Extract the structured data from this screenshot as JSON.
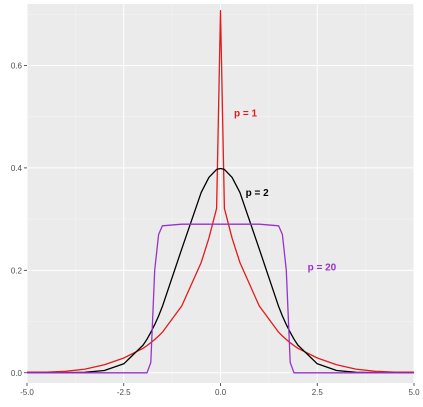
{
  "chart_data": {
    "type": "line",
    "title": "",
    "xlabel": "",
    "ylabel": "",
    "xlim": [
      -5,
      5
    ],
    "ylim": [
      -0.02,
      0.72
    ],
    "x_ticks": [
      -5.0,
      -2.5,
      0.0,
      2.5,
      5.0
    ],
    "x_tick_labels": [
      "-5.0",
      "-2.5",
      "0.0",
      "2.5",
      "5.0"
    ],
    "y_ticks": [
      0.0,
      0.2,
      0.4,
      0.6
    ],
    "y_tick_labels": [
      "0.0",
      "0.2",
      "0.4",
      "0.6"
    ],
    "grid": true,
    "panel_background": "#ebebeb",
    "x": [
      -5.0,
      -4.5,
      -4.0,
      -3.5,
      -3.0,
      -2.5,
      -2.0,
      -1.9,
      -1.8,
      -1.7,
      -1.6,
      -1.5,
      -1.0,
      -0.5,
      -0.3,
      -0.1,
      0.0,
      0.1,
      0.3,
      0.5,
      1.0,
      1.5,
      1.6,
      1.7,
      1.8,
      1.9,
      2.0,
      2.5,
      3.0,
      3.5,
      4.0,
      4.5,
      5.0
    ],
    "series": [
      {
        "name": "p = 1",
        "color": "#e41a1c",
        "values": [
          0.001,
          0.0012,
          0.0028,
          0.0072,
          0.0158,
          0.0289,
          0.0478,
          0.053,
          0.0587,
          0.0649,
          0.0717,
          0.0792,
          0.1305,
          0.2152,
          0.2627,
          0.3209,
          0.7071,
          0.3209,
          0.2627,
          0.2152,
          0.1305,
          0.0792,
          0.0717,
          0.0649,
          0.0587,
          0.053,
          0.0478,
          0.0289,
          0.0158,
          0.0072,
          0.0028,
          0.0012,
          0.001
        ],
        "label_x": 0.35,
        "label_y": 0.5
      },
      {
        "name": "p = 2",
        "color": "#000000",
        "values": [
          0.0,
          0.0,
          0.0001,
          0.0009,
          0.0044,
          0.0175,
          0.054,
          0.0656,
          0.079,
          0.094,
          0.1109,
          0.1295,
          0.242,
          0.3521,
          0.3814,
          0.397,
          0.3989,
          0.397,
          0.3814,
          0.3521,
          0.242,
          0.1295,
          0.1109,
          0.094,
          0.079,
          0.0656,
          0.054,
          0.0175,
          0.0044,
          0.0009,
          0.0001,
          0.0,
          0.0
        ],
        "label_x": 0.65,
        "label_y": 0.345
      },
      {
        "name": "p = 20",
        "color": "#9932cc",
        "values": [
          0.0,
          0.0,
          0.0,
          0.0,
          0.0,
          0.0,
          0.0,
          0.0,
          0.02,
          0.2,
          0.27,
          0.287,
          0.29,
          0.29,
          0.29,
          0.29,
          0.29,
          0.29,
          0.29,
          0.29,
          0.29,
          0.287,
          0.27,
          0.2,
          0.02,
          0.0,
          0.0,
          0.0,
          0.0,
          0.0,
          0.0,
          0.0,
          0.0
        ],
        "label_x": 2.25,
        "label_y": 0.2
      }
    ]
  }
}
